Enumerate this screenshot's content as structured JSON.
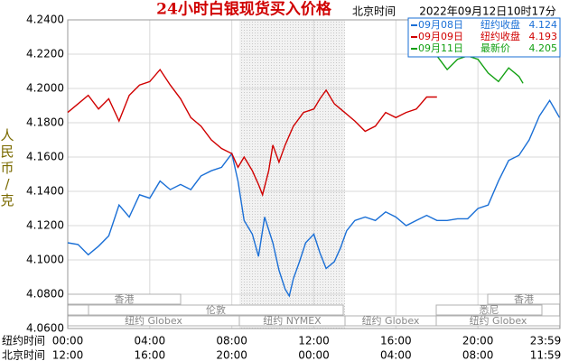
{
  "chart_data": {
    "type": "line",
    "title": "24小时白银现货买入价格",
    "zone": "北京时间",
    "timestamp": "2022年09月12日10时17分",
    "ylabel": "人民币/克",
    "xlabel": "纽约时间",
    "x2label": "北京时间",
    "ylim": [
      4.06,
      4.24
    ],
    "yticks": [
      {
        "value": 4.06,
        "label": "4.0600"
      },
      {
        "value": 4.08,
        "label": "4.0800"
      },
      {
        "value": 4.1,
        "label": "4.1000"
      },
      {
        "value": 4.12,
        "label": "4.1200"
      },
      {
        "value": 4.14,
        "label": "4.1400"
      },
      {
        "value": 4.16,
        "label": "4.1600"
      },
      {
        "value": 4.18,
        "label": "4.1800"
      },
      {
        "value": 4.2,
        "label": "4.2000"
      },
      {
        "value": 4.22,
        "label": "4.2200"
      },
      {
        "value": 4.24,
        "label": "4.2400"
      }
    ],
    "xlim": [
      0,
      24
    ],
    "xticks": [
      {
        "value": 0,
        "label": "00:00"
      },
      {
        "value": 4,
        "label": "04:00"
      },
      {
        "value": 8,
        "label": "08:00"
      },
      {
        "value": 12,
        "label": "12:00"
      },
      {
        "value": 16,
        "label": "16:00"
      },
      {
        "value": 20,
        "label": "20:00"
      },
      {
        "value": 23.98,
        "label": "23:59"
      }
    ],
    "x2ticks": [
      {
        "value": 0,
        "label": "12:00"
      },
      {
        "value": 4,
        "label": "16:00"
      },
      {
        "value": 8,
        "label": "20:00"
      },
      {
        "value": 12,
        "label": "00:00"
      },
      {
        "value": 16,
        "label": "04:00"
      },
      {
        "value": 20,
        "label": "08:00"
      },
      {
        "value": 23.98,
        "label": "11:59"
      }
    ],
    "grid": true,
    "sessions": [
      "香港",
      "伦敦",
      "纽约 Globex",
      "纽约 NYMEX",
      "纽约 Globex",
      "悉尼",
      "香港",
      "纽约 Globex"
    ],
    "series": [
      {
        "name": "09月08日",
        "close_label": "纽约收盘",
        "close": 4.124,
        "color": "#1a6fd6",
        "x": [
          0,
          0.5,
          1,
          1.5,
          2,
          2.5,
          3,
          3.5,
          4,
          4.5,
          5,
          5.5,
          6,
          6.5,
          7,
          7.5,
          8,
          8.3,
          8.6,
          9,
          9.3,
          9.6,
          10,
          10.3,
          10.6,
          10.8,
          11,
          11.3,
          11.6,
          12,
          12.3,
          12.6,
          13,
          13.3,
          13.6,
          14,
          14.5,
          15,
          15.5,
          16,
          16.5,
          17,
          17.5,
          18,
          18.5,
          19,
          19.5,
          20,
          20.5,
          21,
          21.5,
          22,
          22.5,
          23,
          23.5,
          23.98
        ],
        "values": [
          4.11,
          4.109,
          4.103,
          4.108,
          4.114,
          4.132,
          4.125,
          4.138,
          4.136,
          4.146,
          4.141,
          4.144,
          4.141,
          4.149,
          4.152,
          4.154,
          4.162,
          4.146,
          4.123,
          4.115,
          4.102,
          4.125,
          4.11,
          4.094,
          4.083,
          4.079,
          4.089,
          4.099,
          4.11,
          4.115,
          4.104,
          4.095,
          4.099,
          4.107,
          4.117,
          4.123,
          4.125,
          4.123,
          4.128,
          4.125,
          4.12,
          4.123,
          4.126,
          4.123,
          4.123,
          4.124,
          4.124,
          4.13,
          4.132,
          4.146,
          4.158,
          4.161,
          4.17,
          4.184,
          4.193,
          4.183
        ]
      },
      {
        "name": "09月09日",
        "close_label": "纽约收盘",
        "close": 4.193,
        "color": "#d00000",
        "x": [
          0,
          0.5,
          1,
          1.5,
          2,
          2.5,
          3,
          3.5,
          4,
          4.5,
          5,
          5.5,
          6,
          6.5,
          7,
          7.5,
          8,
          8.3,
          8.6,
          9,
          9.3,
          9.5,
          9.8,
          10,
          10.3,
          10.6,
          11,
          11.5,
          12,
          12.3,
          12.6,
          13,
          13.5,
          14,
          14.5,
          15,
          15.5,
          16,
          16.5,
          17,
          17.5,
          18
        ],
        "values": [
          4.186,
          4.191,
          4.196,
          4.188,
          4.194,
          4.181,
          4.196,
          4.202,
          4.204,
          4.211,
          4.202,
          4.194,
          4.183,
          4.178,
          4.17,
          4.165,
          4.162,
          4.154,
          4.16,
          4.152,
          4.144,
          4.138,
          4.152,
          4.167,
          4.157,
          4.167,
          4.178,
          4.186,
          4.188,
          4.194,
          4.199,
          4.191,
          4.186,
          4.181,
          4.175,
          4.178,
          4.186,
          4.183,
          4.186,
          4.188,
          4.195,
          4.195
        ]
      },
      {
        "name": "09月11日",
        "close_label": "最新价",
        "close": 4.205,
        "color": "#12a012",
        "x": [
          18,
          18.5,
          19,
          19.5,
          20,
          20.5,
          21,
          21.5,
          22,
          22.2
        ],
        "values": [
          4.219,
          4.211,
          4.217,
          4.219,
          4.217,
          4.209,
          4.204,
          4.212,
          4.207,
          4.203
        ]
      }
    ]
  }
}
